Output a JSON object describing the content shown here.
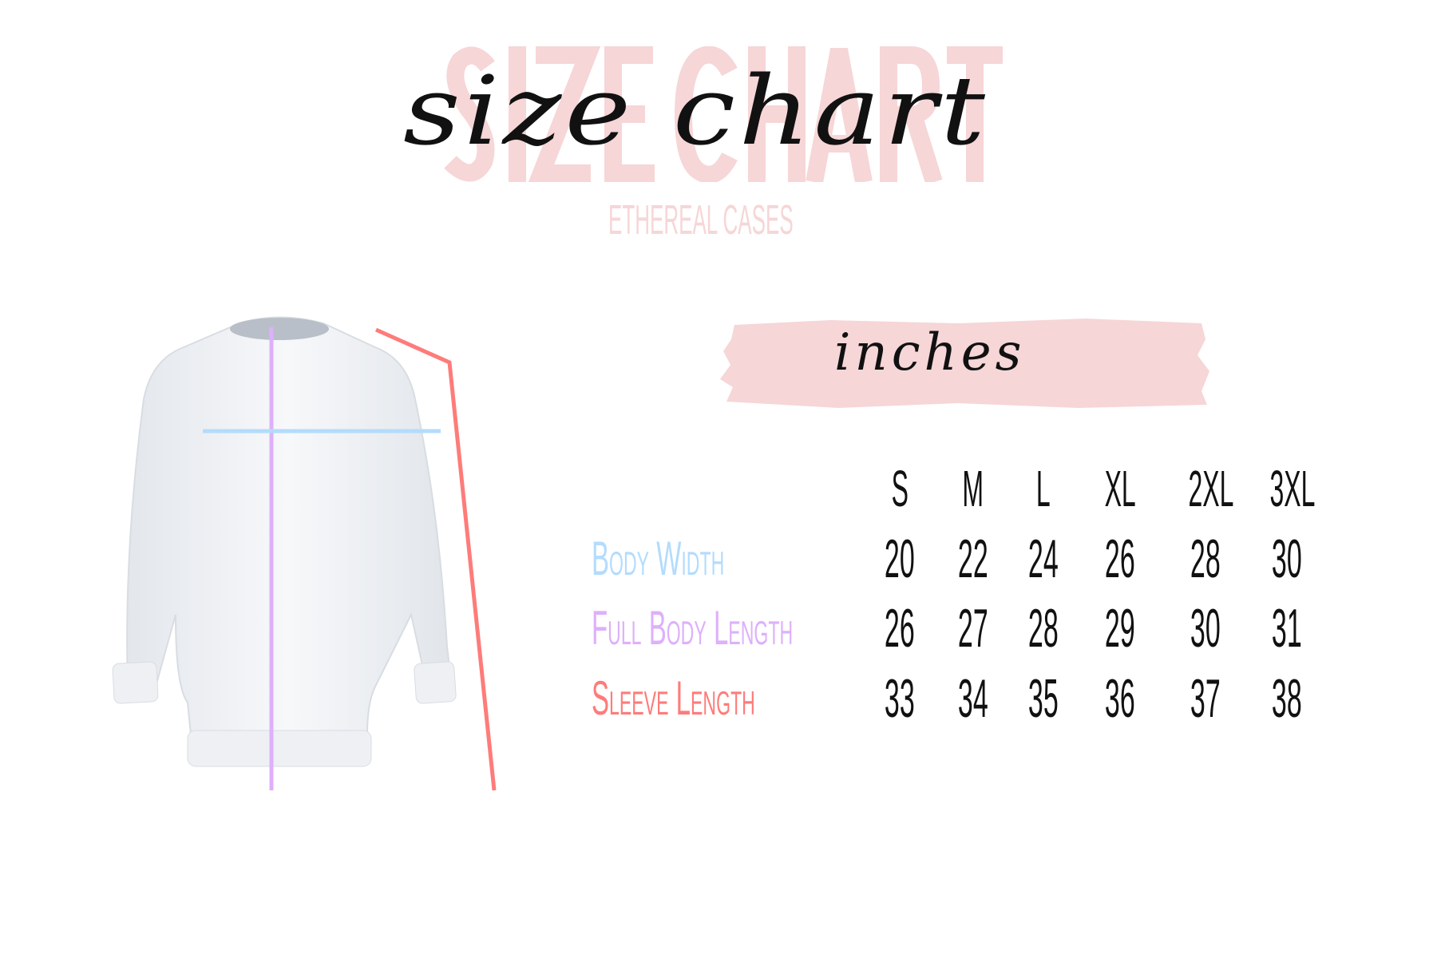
{
  "title": {
    "background": "SIZE CHART",
    "script": "size chart",
    "brand": "ETHEREAL CASES"
  },
  "unit_label": "inches",
  "colors": {
    "brand_pink": "#f6d6d7",
    "body_width": "#b3dcfd",
    "full_body_length": "#deb0fb",
    "sleeve_length": "#fd7c7a"
  },
  "table": {
    "sizes": [
      "S",
      "M",
      "L",
      "XL",
      "2XL",
      "3XL"
    ],
    "rows": [
      {
        "label": "Body Width",
        "values": [
          "20",
          "22",
          "24",
          "26",
          "28",
          "30"
        ]
      },
      {
        "label": "Full Body Length",
        "values": [
          "26",
          "27",
          "28",
          "29",
          "30",
          "31"
        ]
      },
      {
        "label": "Sleeve Length",
        "values": [
          "33",
          "34",
          "35",
          "36",
          "37",
          "38"
        ]
      }
    ]
  },
  "illustration": {
    "subject": "sweatshirt",
    "icon": "sweatshirt-measurement-diagram"
  }
}
